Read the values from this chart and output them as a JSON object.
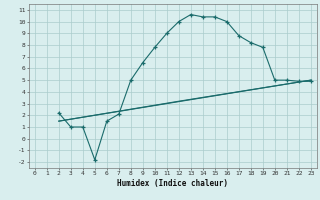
{
  "xlabel": "Humidex (Indice chaleur)",
  "bg_color": "#d9eeee",
  "grid_color": "#aacccc",
  "line_color": "#1a6b6b",
  "xlim": [
    -0.5,
    23.5
  ],
  "ylim": [
    -2.5,
    11.5
  ],
  "xticks": [
    0,
    1,
    2,
    3,
    4,
    5,
    6,
    7,
    8,
    9,
    10,
    11,
    12,
    13,
    14,
    15,
    16,
    17,
    18,
    19,
    20,
    21,
    22,
    23
  ],
  "yticks": [
    -2,
    -1,
    0,
    1,
    2,
    3,
    4,
    5,
    6,
    7,
    8,
    9,
    10,
    11
  ],
  "curve1_x": [
    2,
    3,
    4,
    5,
    6,
    7,
    8,
    9,
    10,
    11,
    12,
    13,
    14,
    15,
    16,
    17,
    18,
    19,
    20,
    21,
    22,
    23
  ],
  "curve1_y": [
    2.2,
    1.0,
    1.0,
    -1.8,
    1.5,
    2.1,
    5.0,
    6.5,
    7.8,
    9.0,
    10.0,
    10.6,
    10.4,
    10.4,
    10.0,
    8.8,
    8.2,
    7.8,
    5.0,
    5.0,
    4.9,
    4.9
  ],
  "line2_x": [
    2,
    23
  ],
  "line2_y": [
    1.5,
    5.0
  ],
  "line3_x": [
    2,
    12,
    23
  ],
  "line3_y": [
    1.5,
    3.2,
    5.0
  ]
}
